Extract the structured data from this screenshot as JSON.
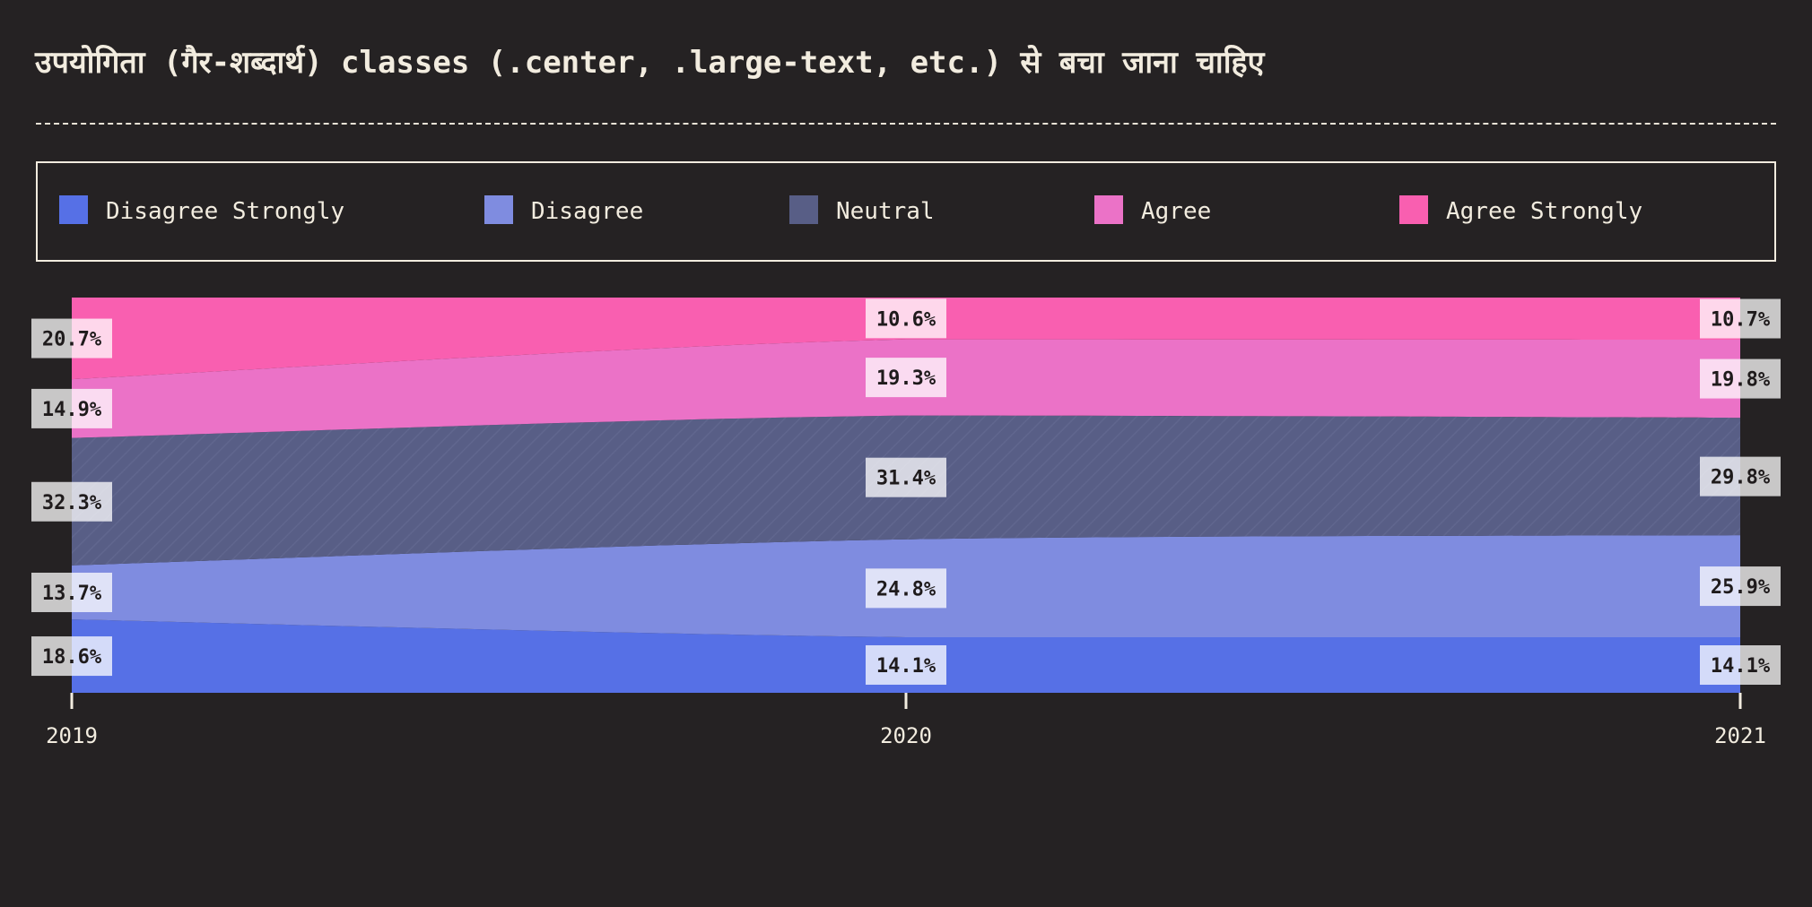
{
  "title": "उपयोगिता (गैर-शब्दार्थ) classes (.center, .large-text, etc.) से बचा जाना चाहिए",
  "legend": {
    "placement": "top",
    "items": [
      {
        "label": "Disagree Strongly",
        "color": "#5670e6"
      },
      {
        "label": "Disagree",
        "color": "#7f8ce0"
      },
      {
        "label": "Neutral",
        "color": "#585e86"
      },
      {
        "label": "Agree",
        "color": "#eb72c7"
      },
      {
        "label": "Agree Strongly",
        "color": "#f95fb0"
      }
    ]
  },
  "chart_data": {
    "type": "area",
    "stacked": "percent",
    "x": [
      "2019",
      "2020",
      "2021"
    ],
    "ylim": [
      0,
      100
    ],
    "grid": false,
    "series": [
      {
        "name": "Disagree Strongly",
        "color": "#5670e6",
        "values": [
          18.6,
          14.1,
          14.1
        ],
        "labels": [
          "18.6%",
          "14.1%",
          "14.1%"
        ]
      },
      {
        "name": "Disagree",
        "color": "#7f8ce0",
        "values": [
          13.7,
          24.8,
          25.9
        ],
        "labels": [
          "13.7%",
          "24.8%",
          "25.9%"
        ]
      },
      {
        "name": "Neutral",
        "color": "#585e86",
        "hatched": true,
        "values": [
          32.3,
          31.4,
          29.8
        ],
        "labels": [
          "32.3%",
          "31.4%",
          "29.8%"
        ]
      },
      {
        "name": "Agree",
        "color": "#eb72c7",
        "values": [
          14.9,
          19.3,
          19.8
        ],
        "labels": [
          "14.9%",
          "19.3%",
          "19.8%"
        ]
      },
      {
        "name": "Agree Strongly",
        "color": "#f95fb0",
        "values": [
          20.7,
          10.6,
          10.7
        ],
        "labels": [
          "20.7%",
          "10.6%",
          "10.7%"
        ]
      }
    ]
  }
}
